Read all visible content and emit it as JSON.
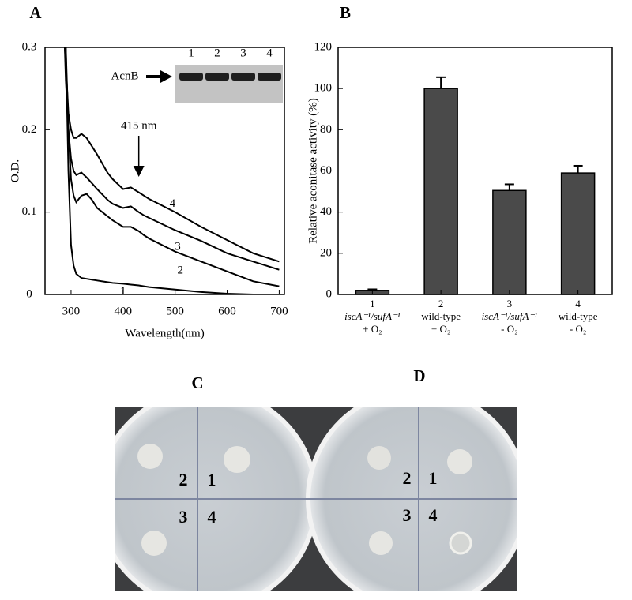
{
  "chart_data": [
    {
      "type": "line",
      "panel_label": "A",
      "x": [
        288,
        290,
        295,
        300,
        305,
        310,
        320,
        330,
        340,
        350,
        370,
        380,
        400,
        415,
        430,
        440,
        450,
        500,
        550,
        600,
        650,
        700
      ],
      "series": [
        {
          "name": "1",
          "color": "#000000",
          "values": [
            null,
            0.3,
            0.15,
            0.06,
            0.035,
            0.025,
            0.02,
            0.019,
            0.018,
            0.017,
            0.015,
            0.014,
            0.013,
            0.012,
            0.011,
            0.01,
            0.009,
            0.006,
            0.003,
            0.001,
            0,
            0
          ]
        },
        {
          "name": "2",
          "color": "#000000",
          "values": [
            null,
            0.3,
            0.2,
            0.14,
            0.12,
            0.112,
            0.12,
            0.122,
            0.115,
            0.105,
            0.095,
            0.09,
            0.082,
            0.082,
            0.077,
            0.072,
            0.068,
            0.052,
            0.04,
            0.028,
            0.016,
            0.01
          ]
        },
        {
          "name": "3",
          "color": "#000000",
          "values": [
            0.3,
            0.26,
            0.2,
            0.165,
            0.15,
            0.145,
            0.148,
            0.142,
            0.135,
            0.128,
            0.115,
            0.11,
            0.105,
            0.107,
            0.1,
            0.096,
            0.093,
            0.078,
            0.065,
            0.05,
            0.04,
            0.03
          ]
        },
        {
          "name": "4",
          "color": "#000000",
          "values": [
            0.3,
            0.28,
            0.22,
            0.2,
            0.19,
            0.19,
            0.195,
            0.19,
            0.18,
            0.17,
            0.148,
            0.14,
            0.128,
            0.13,
            0.124,
            0.12,
            0.116,
            0.1,
            0.082,
            0.066,
            0.05,
            0.04
          ]
        }
      ],
      "xlim": [
        250,
        710
      ],
      "ylim": [
        0,
        0.3
      ],
      "xticks": [
        300,
        400,
        500,
        600,
        700
      ],
      "yticks": [
        0,
        0.1,
        0.2,
        0.3
      ],
      "xlabel": "Wavelength(nm)",
      "ylabel": "O.D.",
      "annotation": {
        "text": "415 nm",
        "x": 415
      },
      "inset": {
        "label": "AcnB",
        "lanes": [
          "1",
          "2",
          "3",
          "4"
        ]
      }
    },
    {
      "type": "bar",
      "panel_label": "B",
      "categories": [
        "1",
        "2",
        "3",
        "4"
      ],
      "category_notes": [
        [
          "iscA⁻¹/sufA⁻¹",
          "+ O₂"
        ],
        [
          "wild-type",
          "+ O₂"
        ],
        [
          "iscA⁻¹/sufA⁻¹",
          "- O₂"
        ],
        [
          "wild-type",
          "- O₂"
        ]
      ],
      "values": [
        2,
        100,
        50.5,
        59
      ],
      "errors": [
        0.5,
        5.5,
        3,
        3.5
      ],
      "color": "#4a4a4a",
      "ylim": [
        0,
        120
      ],
      "yticks": [
        0,
        20,
        40,
        60,
        80,
        100,
        120
      ],
      "ylabel": "Relative aconitase activity (%)"
    }
  ],
  "plates": [
    {
      "letter": "C",
      "spots": [
        "1",
        "2",
        "3",
        "4"
      ]
    },
    {
      "letter": "D",
      "spots": [
        "1",
        "2",
        "3",
        "4"
      ]
    }
  ]
}
